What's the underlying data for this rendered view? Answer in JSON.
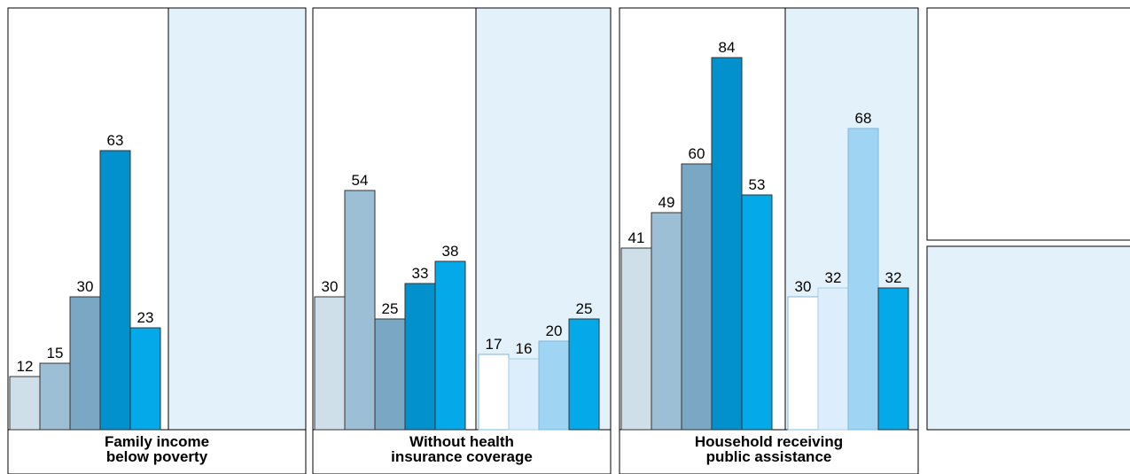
{
  "chart_data": {
    "type": "bar",
    "ylim": [
      0,
      100
    ],
    "colors": [
      "#cfdfe9",
      "#9dbfd5",
      "#7aa8c4",
      "#0391ce",
      "#03a9e8",
      "#ffffff",
      "#dceefb",
      "#9fd4f3",
      "#e3f1fb"
    ],
    "panels": [
      {
        "label_lines": [
          "Family income",
          "below poverty"
        ],
        "groups": [
          {
            "values": [
              12,
              15,
              30,
              63,
              23
            ]
          },
          {
            "values": []
          }
        ]
      },
      {
        "label_lines": [
          "Without health",
          "insurance coverage"
        ],
        "groups": [
          {
            "values": [
              30,
              54,
              25,
              33,
              38
            ]
          },
          {
            "values": [
              17,
              16,
              20,
              25
            ]
          }
        ]
      },
      {
        "label_lines": [
          "Household receiving",
          "public  assistance"
        ],
        "groups": [
          {
            "values": [
              41,
              49,
              60,
              84,
              53
            ]
          },
          {
            "values": [
              30,
              32,
              68,
              32
            ]
          }
        ]
      }
    ]
  }
}
